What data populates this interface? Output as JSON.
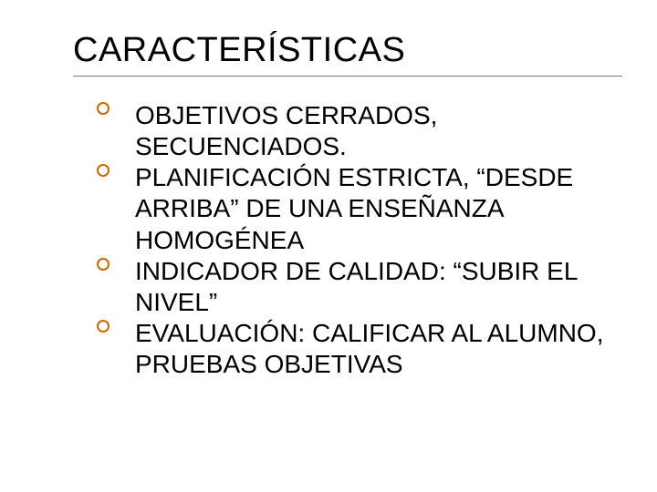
{
  "slide": {
    "title": "CARACTERÍSTICAS",
    "title_fontsize": 38,
    "title_color": "#000000",
    "rule_color": "#7f7f7f",
    "bullet_ring_color": "#cc6600",
    "body_fontsize": 28,
    "background_color": "#ffffff",
    "items": [
      " OBJETIVOS CERRADOS, SECUENCIADOS.",
      " PLANIFICACIÓN ESTRICTA, “DESDE ARRIBA” DE UNA ENSEÑANZA HOMOGÉNEA",
      " INDICADOR DE CALIDAD: “SUBIR EL NIVEL”",
      "EVALUACIÓN: CALIFICAR AL ALUMNO, PRUEBAS OBJETIVAS"
    ]
  }
}
